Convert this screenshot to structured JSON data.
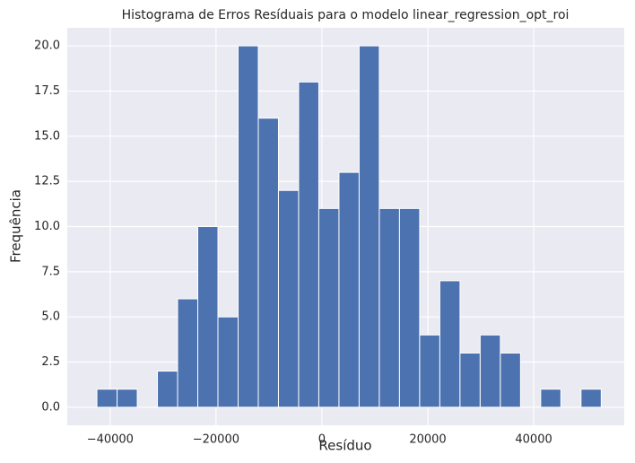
{
  "chart_data": {
    "type": "histogram",
    "title": "Histograma de Erros Resíduais para o modelo linear_regression_opt_roi",
    "x_label": "Resíduo",
    "y_label": "Frequência",
    "bins": [
      -42500,
      -38690,
      -34880,
      -31070,
      -27260,
      -23450,
      -19640,
      -15830,
      -12020,
      -8210,
      -4400,
      -590,
      3220,
      7030,
      10840,
      14650,
      18460,
      22270,
      26080,
      29890,
      33700,
      37510,
      41320,
      45130,
      48940,
      52750
    ],
    "counts": [
      1,
      1,
      0,
      2,
      6,
      10,
      5,
      20,
      16,
      12,
      18,
      11,
      13,
      20,
      11,
      11,
      4,
      7,
      3,
      4,
      3,
      0,
      1,
      0,
      1
    ],
    "color": "#4c72b0",
    "xlim": [
      -48100,
      57100
    ],
    "xticks": [
      {
        "value": -40000,
        "label": "−40000"
      },
      {
        "value": -20000,
        "label": "−20000"
      },
      0,
      20000,
      40000
    ],
    "ylim": [
      -1,
      21
    ],
    "yticks": [
      {
        "value": 0,
        "label": "0.0"
      },
      {
        "value": 2.5,
        "label": "2.5"
      },
      {
        "value": 5,
        "label": "5.0"
      },
      {
        "value": 7.5,
        "label": "7.5"
      },
      {
        "value": 10,
        "label": "10.0"
      },
      {
        "value": 12.5,
        "label": "12.5"
      },
      {
        "value": 15,
        "label": "15.0"
      },
      {
        "value": 17.5,
        "label": "17.5"
      },
      {
        "value": 20,
        "label": "20.0"
      }
    ],
    "grid": true
  }
}
